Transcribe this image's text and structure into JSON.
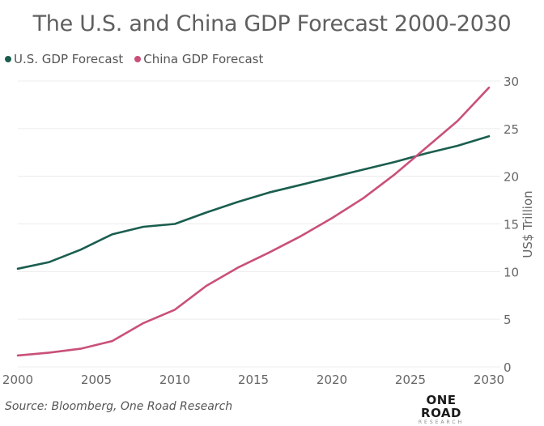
{
  "chart_data": {
    "type": "line",
    "title": "The U.S. and China GDP Forecast 2000-2030",
    "xlabel": "",
    "ylabel": "US$ Trillion",
    "x": [
      2000,
      2002,
      2004,
      2006,
      2008,
      2010,
      2012,
      2014,
      2016,
      2018,
      2020,
      2022,
      2024,
      2026,
      2028,
      2030
    ],
    "series": [
      {
        "name": "U.S. GDP Forecast",
        "color": "#1a5e4f",
        "values": [
          10.3,
          11.0,
          12.3,
          13.9,
          14.7,
          15.0,
          16.2,
          17.3,
          18.3,
          19.1,
          19.9,
          20.7,
          21.5,
          22.4,
          23.2,
          24.2
        ]
      },
      {
        "name": "China GDP Forecast",
        "color": "#c9507a",
        "values": [
          1.2,
          1.5,
          1.9,
          2.7,
          4.6,
          6.0,
          8.5,
          10.4,
          12.0,
          13.7,
          15.6,
          17.7,
          20.2,
          23.0,
          25.8,
          29.3
        ]
      }
    ],
    "xlim": [
      2000,
      2030
    ],
    "ylim": [
      0,
      30
    ],
    "x_ticks": [
      "2000",
      "2005",
      "2010",
      "2015",
      "2020",
      "2025",
      "2030"
    ],
    "y_ticks": [
      "0",
      "5",
      "10",
      "15",
      "20",
      "25",
      "30"
    ],
    "y_axis_side": "right",
    "grid": true,
    "legend_position": "top-left"
  },
  "footer": {
    "source": "Source: Bloomberg, One Road Research",
    "logo_main": "ONE ROAD",
    "logo_sub": "RESEARCH"
  }
}
